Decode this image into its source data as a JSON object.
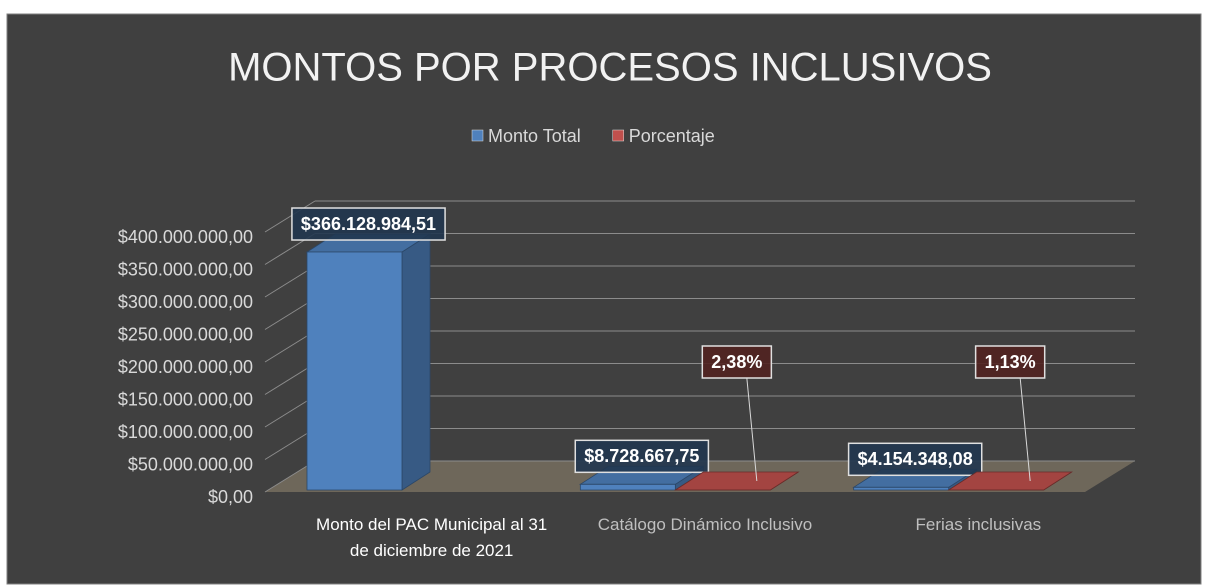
{
  "chart_data": {
    "type": "bar3d",
    "title": "MONTOS POR PROCESOS INCLUSIVOS",
    "categories": [
      "Monto del PAC Municipal al 31 de diciembre de 2021",
      "Catálogo Dinámico Inclusivo",
      "Ferias inclusivas"
    ],
    "series": [
      {
        "name": "Monto Total",
        "color": "#4f81bd",
        "values": [
          366128984.51,
          8728667.75,
          4154348.08
        ],
        "value_labels": [
          "$366.128.984,51",
          "$8.728.667,75",
          "$4.154.348,08"
        ]
      },
      {
        "name": "Porcentaje",
        "color": "#c0504d",
        "values": [
          null,
          2.38,
          1.13
        ],
        "value_labels": [
          null,
          "2,38%",
          "1,13%"
        ]
      }
    ],
    "ylim": [
      0,
      400000000
    ],
    "yticks": [
      {
        "value": 0,
        "label": "$0,00"
      },
      {
        "value": 50000000,
        "label": "$50.000.000,00"
      },
      {
        "value": 100000000,
        "label": "$100.000.000,00"
      },
      {
        "value": 150000000,
        "label": "$150.000.000,00"
      },
      {
        "value": 200000000,
        "label": "$200.000.000,00"
      },
      {
        "value": 250000000,
        "label": "$250.000.000,00"
      },
      {
        "value": 300000000,
        "label": "$300.000.000,00"
      },
      {
        "value": 350000000,
        "label": "$350.000.000,00"
      },
      {
        "value": 400000000,
        "label": "$400.000.000,00"
      }
    ],
    "grid": true,
    "legend": "top"
  }
}
